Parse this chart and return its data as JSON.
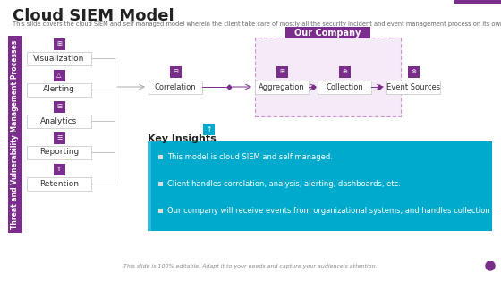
{
  "title": "Cloud SIEM Model",
  "subtitle": "This slide covers the cloud SIEM and self managed model wherein the client take care of mostly all the security incident and event management process on its own except aggregation and collection.",
  "footer": "This slide is 100% editable. Adapt it to your needs and capture your audience's attention.",
  "bg_color": "#ffffff",
  "sidebar_color": "#7B2D8B",
  "sidebar_text": "Threat and Vulnerability Management Processes",
  "sidebar_text_color": "#ffffff",
  "left_items": [
    "Visualization",
    "Alerting",
    "Analytics",
    "Reporting",
    "Retention"
  ],
  "icon_bg_color": "#7B2D8B",
  "our_company_label": "Our Company",
  "our_company_bg": "#f5eaf8",
  "our_company_header_bg": "#7B2D8B",
  "flow_items": [
    "Correlation",
    "Aggregation",
    "Collection",
    "Event Sources"
  ],
  "flow_box_border": "#cccccc",
  "arrow_color": "#7B2D8B",
  "key_insights_title": "Key Insights",
  "key_insights_bg": "#00AACC",
  "bullet_points": [
    "This model is cloud SIEM and self managed.",
    "Client handles correlation, analysis, alerting, dashboards, etc.",
    "Our company will receive events from organizational systems, and handles collection & aggregation."
  ],
  "connector_line_color": "#aaaaaa",
  "title_fontsize": 13,
  "subtitle_fontsize": 4.8,
  "footer_fontsize": 4.5,
  "sidebar_fontsize": 5.5,
  "label_fontsize": 6.5,
  "key_insights_fontsize": 8,
  "bullet_fontsize": 6
}
